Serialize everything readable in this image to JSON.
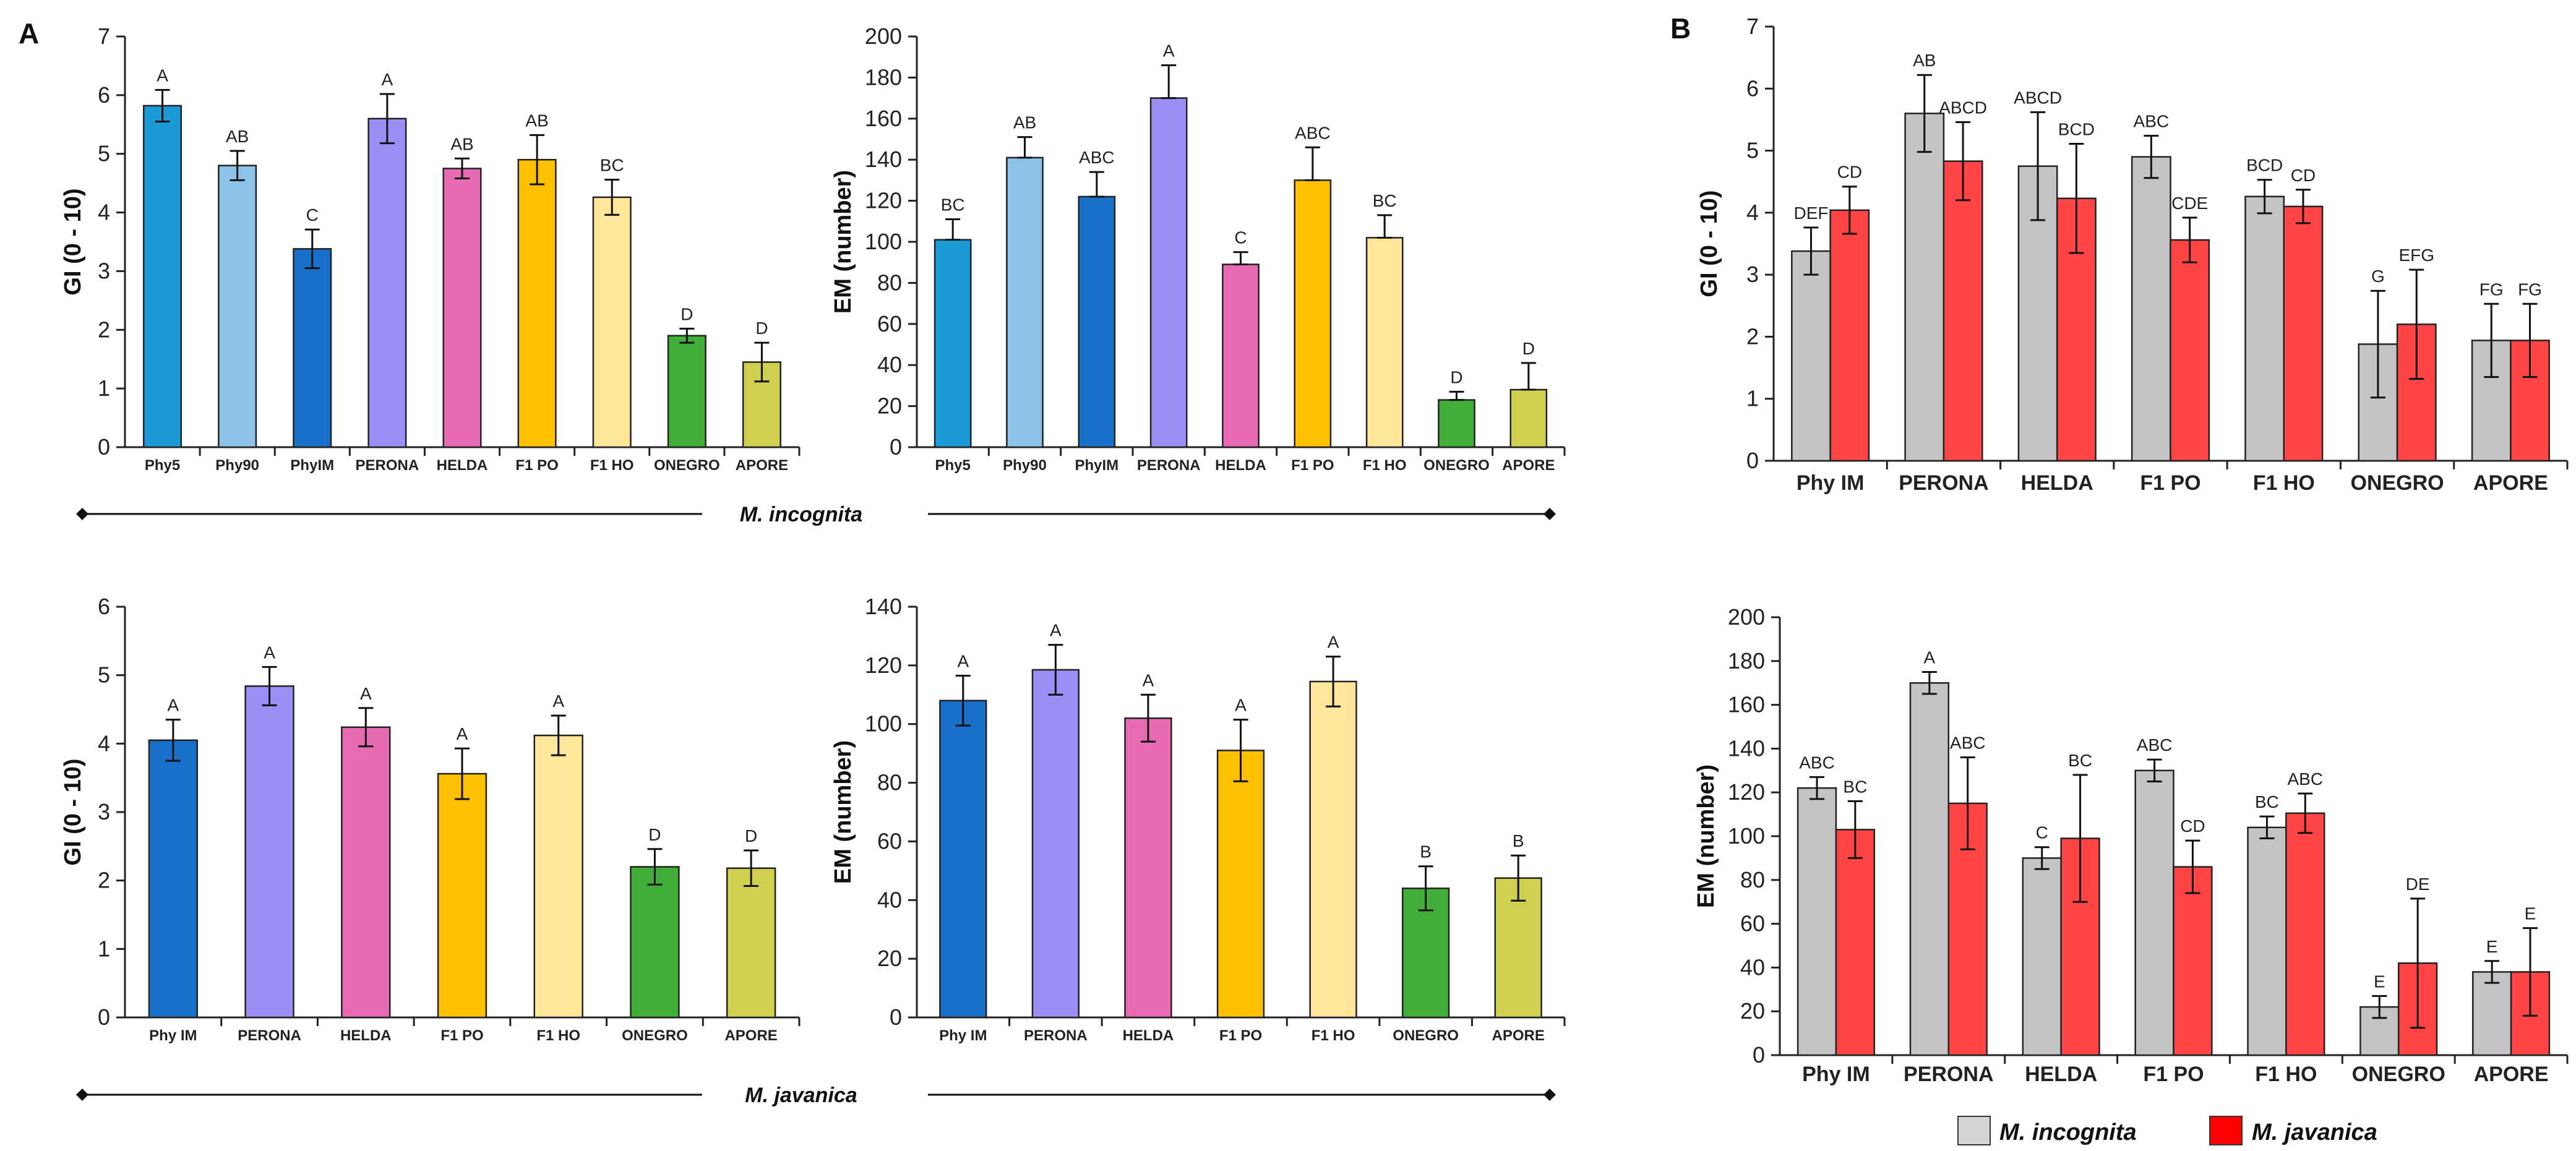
{
  "panel_labels": {
    "a": "A",
    "b": "B"
  },
  "species_labels": {
    "top": "M. incognita",
    "bottom": "M. javanica"
  },
  "legend": [
    {
      "label": "M. incognita",
      "color": "#d4d4d4"
    },
    {
      "label": "M. javanica",
      "color": "#ff0000"
    }
  ],
  "chart_data": [
    {
      "id": "A-GI-incognita",
      "type": "bar",
      "title": "",
      "xlabel": "",
      "ylabel": "GI (0 - 10)",
      "ylim": [
        0,
        7
      ],
      "yticks": [
        0,
        1,
        2,
        3,
        4,
        5,
        6,
        7
      ],
      "grid": false,
      "categories": [
        "Phy5",
        "Phy90",
        "PhyIM",
        "PERONA",
        "HELDA",
        "F1 PO",
        "F1 HO",
        "ONEGRO",
        "APORE"
      ],
      "series": [
        {
          "name": "M. incognita",
          "values": [
            5.82,
            4.8,
            3.38,
            5.6,
            4.75,
            4.9,
            4.26,
            1.9,
            1.45
          ],
          "errors": [
            0.27,
            0.25,
            0.33,
            0.42,
            0.17,
            0.42,
            0.3,
            0.12,
            0.33
          ],
          "letters": [
            "A",
            "AB",
            "C",
            "A",
            "AB",
            "AB",
            "BC",
            "D",
            "D"
          ],
          "colors": [
            "#1a9ad6",
            "#8dc3e8",
            "#1870c8",
            "#9b8ff5",
            "#e86ab3",
            "#ffc000",
            "#ffe699",
            "#43ad3a",
            "#cfcf50"
          ]
        }
      ]
    },
    {
      "id": "A-EM-incognita",
      "type": "bar",
      "title": "",
      "xlabel": "",
      "ylabel": "EM (number)",
      "ylim": [
        0,
        200
      ],
      "yticks": [
        0,
        20,
        40,
        60,
        80,
        100,
        120,
        140,
        160,
        180,
        200
      ],
      "grid": false,
      "error_upper_only": true,
      "categories": [
        "Phy5",
        "Phy90",
        "PhyIM",
        "PERONA",
        "HELDA",
        "F1 PO",
        "F1 HO",
        "ONEGRO",
        "APORE"
      ],
      "series": [
        {
          "name": "M. incognita",
          "values": [
            101,
            141,
            122,
            170,
            89,
            130,
            102,
            23,
            28
          ],
          "errors": [
            10,
            10,
            12,
            16,
            6,
            16,
            11,
            4,
            13
          ],
          "letters": [
            "BC",
            "AB",
            "ABC",
            "A",
            "C",
            "ABC",
            "BC",
            "D",
            "D"
          ],
          "colors": [
            "#1a9ad6",
            "#8dc3e8",
            "#1870c8",
            "#9b8ff5",
            "#e86ab3",
            "#ffc000",
            "#ffe699",
            "#43ad3a",
            "#cfcf50"
          ]
        }
      ]
    },
    {
      "id": "B-GI",
      "type": "bar",
      "title": "",
      "xlabel": "",
      "ylabel": "GI (0 - 10)",
      "ylim": [
        0,
        7
      ],
      "yticks": [
        0,
        1,
        2,
        3,
        4,
        5,
        6,
        7
      ],
      "grid": false,
      "categories": [
        "Phy IM",
        "PERONA",
        "HELDA",
        "F1 PO",
        "F1 HO",
        "ONEGRO",
        "APORE"
      ],
      "series": [
        {
          "name": "M. incognita",
          "color": "#c4c4c4",
          "values": [
            3.38,
            5.6,
            4.75,
            4.9,
            4.26,
            1.88,
            1.94
          ],
          "errors": [
            0.38,
            0.62,
            0.87,
            0.34,
            0.27,
            0.86,
            0.59
          ],
          "letters": [
            "DEF",
            "AB",
            "ABCD",
            "ABC",
            "BCD",
            "G",
            "FG"
          ]
        },
        {
          "name": "M. javanica",
          "color": "#ff4545",
          "values": [
            4.04,
            4.83,
            4.23,
            3.56,
            4.1,
            2.2,
            1.94
          ],
          "errors": [
            0.38,
            0.63,
            0.88,
            0.36,
            0.27,
            0.88,
            0.59
          ],
          "letters": [
            "CD",
            "ABCD",
            "BCD",
            "CDE",
            "CD",
            "EFG",
            "FG"
          ]
        }
      ]
    },
    {
      "id": "A-GI-javanica",
      "type": "bar",
      "title": "",
      "xlabel": "",
      "ylabel": "GI (0 - 10)",
      "ylim": [
        0,
        6
      ],
      "yticks": [
        0,
        1,
        2,
        3,
        4,
        5,
        6
      ],
      "grid": false,
      "categories": [
        "Phy IM",
        "PERONA",
        "HELDA",
        "F1 PO",
        "F1 HO",
        "ONEGRO",
        "APORE"
      ],
      "series": [
        {
          "name": "M. javanica",
          "values": [
            4.05,
            4.84,
            4.24,
            3.56,
            4.12,
            2.2,
            2.18
          ],
          "errors": [
            0.3,
            0.28,
            0.28,
            0.37,
            0.29,
            0.26,
            0.26
          ],
          "letters": [
            "A",
            "A",
            "A",
            "A",
            "A",
            "D",
            "D"
          ],
          "colors": [
            "#1870c8",
            "#9b8ff5",
            "#e86ab3",
            "#ffc000",
            "#ffe699",
            "#43ad3a",
            "#cfcf50"
          ]
        }
      ]
    },
    {
      "id": "A-EM-javanica",
      "type": "bar",
      "title": "",
      "xlabel": "",
      "ylabel": "EM (number)",
      "ylim": [
        0,
        140
      ],
      "yticks": [
        0,
        20,
        40,
        60,
        80,
        100,
        120,
        140
      ],
      "grid": false,
      "categories": [
        "Phy IM",
        "PERONA",
        "HELDA",
        "F1 PO",
        "F1 HO",
        "ONEGRO",
        "APORE"
      ],
      "series": [
        {
          "name": "M. javanica",
          "values": [
            108,
            118.5,
            102,
            91,
            114.5,
            44,
            47.5
          ],
          "errors": [
            8.5,
            8.5,
            8,
            10.5,
            8.5,
            7.5,
            7.7
          ],
          "letters": [
            "A",
            "A",
            "A",
            "A",
            "A",
            "B",
            "B"
          ],
          "colors": [
            "#1870c8",
            "#9b8ff5",
            "#e86ab3",
            "#ffc000",
            "#ffe699",
            "#43ad3a",
            "#cfcf50"
          ]
        }
      ]
    },
    {
      "id": "B-EM",
      "type": "bar",
      "title": "",
      "xlabel": "",
      "ylabel": "EM (number)",
      "ylim": [
        0,
        200
      ],
      "yticks": [
        0,
        20,
        40,
        60,
        80,
        100,
        120,
        140,
        160,
        180,
        200
      ],
      "grid": false,
      "categories": [
        "Phy IM",
        "PERONA",
        "HELDA",
        "F1 PO",
        "F1 HO",
        "ONEGRO",
        "APORE"
      ],
      "series": [
        {
          "name": "M. incognita",
          "color": "#c4c4c4",
          "values": [
            122,
            170,
            90,
            130,
            104,
            22,
            38
          ],
          "errors": [
            5,
            5,
            5,
            5,
            5,
            5,
            5
          ],
          "letters": [
            "ABC",
            "A",
            "C",
            "ABC",
            "BC",
            "E",
            "E"
          ]
        },
        {
          "name": "M. javanica",
          "color": "#ff4545",
          "values": [
            103,
            115,
            99,
            86,
            110.5,
            42,
            38
          ],
          "errors": [
            13,
            21,
            29,
            12,
            9,
            29.5,
            20
          ],
          "letters": [
            "BC",
            "ABC",
            "BC",
            "CD",
            "ABC",
            "DE",
            "E"
          ]
        }
      ]
    }
  ]
}
